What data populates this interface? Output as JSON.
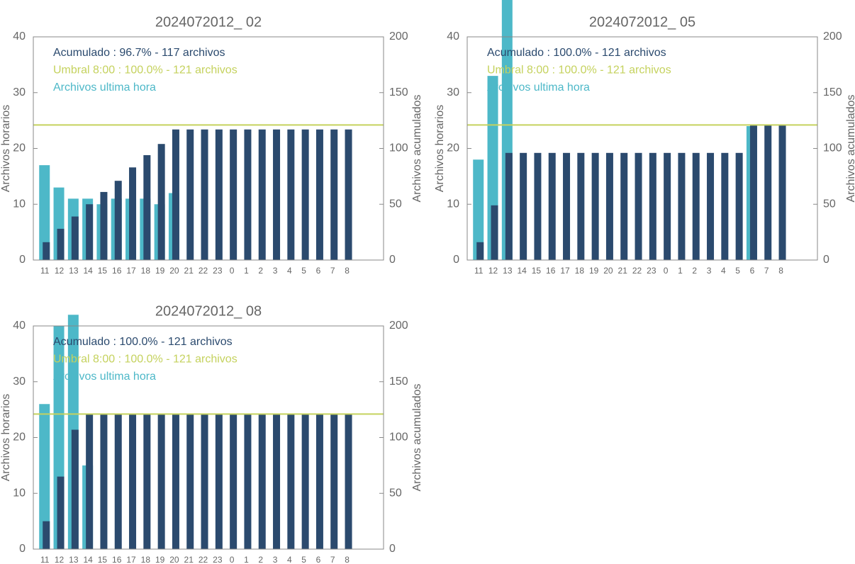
{
  "chart_data": [
    {
      "type": "bar",
      "title": "2024072012_ 02",
      "categories": [
        "11",
        "12",
        "13",
        "14",
        "15",
        "16",
        "17",
        "18",
        "19",
        "20",
        "21",
        "22",
        "23",
        "0",
        "1",
        "2",
        "3",
        "4",
        "5",
        "6",
        "7",
        "8"
      ],
      "ylabel": "Archivos horarios",
      "y2label": "Archivos acumulados",
      "ylim": [
        0,
        40
      ],
      "yticks": [
        0,
        10,
        20,
        30,
        40
      ],
      "y2lim": [
        0,
        200
      ],
      "y2ticks": [
        0,
        50,
        100,
        150,
        200
      ],
      "series": [
        {
          "name": "Archivos ultima hora",
          "color": "#4db8c8",
          "values": [
            17,
            13,
            11,
            11,
            10,
            11,
            11,
            11,
            10,
            12,
            null,
            null,
            null,
            null,
            null,
            null,
            null,
            null,
            null,
            null,
            null,
            null
          ]
        },
        {
          "name": "Acumulado : 96.7% - 117 archivos",
          "color": "#2b4a6e",
          "axis": "y2",
          "values": [
            16,
            28,
            39,
            50,
            61,
            71,
            83,
            94,
            104,
            117,
            117,
            117,
            117,
            117,
            117,
            117,
            117,
            117,
            117,
            117,
            117,
            117
          ]
        }
      ],
      "threshold": {
        "name": "Umbral 8:00 : 100.0% - 121 archivos",
        "color": "#c5d25e",
        "axis": "y2",
        "value": 121
      }
    },
    {
      "type": "bar",
      "title": "2024072012_ 05",
      "categories": [
        "11",
        "12",
        "13",
        "14",
        "15",
        "16",
        "17",
        "18",
        "19",
        "20",
        "21",
        "22",
        "23",
        "0",
        "1",
        "2",
        "3",
        "4",
        "5",
        "6",
        "7",
        "8"
      ],
      "ylabel": "Archivos horarios",
      "y2label": "Archivos acumulados",
      "ylim": [
        0,
        40
      ],
      "yticks": [
        0,
        10,
        20,
        30,
        40
      ],
      "y2lim": [
        0,
        200
      ],
      "y2ticks": [
        0,
        50,
        100,
        150,
        200
      ],
      "series": [
        {
          "name": "Archivos ultima hora",
          "color": "#4db8c8",
          "values": [
            18,
            33,
            47,
            null,
            null,
            null,
            null,
            null,
            null,
            null,
            null,
            null,
            null,
            null,
            null,
            null,
            null,
            null,
            null,
            24,
            null,
            null
          ]
        },
        {
          "name": "Acumulado : 100.0% - 121 archivos",
          "color": "#2b4a6e",
          "axis": "y2",
          "values": [
            16,
            49,
            96,
            96,
            96,
            96,
            96,
            96,
            96,
            96,
            96,
            96,
            96,
            96,
            96,
            96,
            96,
            96,
            96,
            121,
            121,
            121
          ]
        }
      ],
      "threshold": {
        "name": "Umbral 8:00 : 100.0% - 121 archivos",
        "color": "#c5d25e",
        "axis": "y2",
        "value": 121
      }
    },
    {
      "type": "bar",
      "title": "2024072012_ 08",
      "categories": [
        "11",
        "12",
        "13",
        "14",
        "15",
        "16",
        "17",
        "18",
        "19",
        "20",
        "21",
        "22",
        "23",
        "0",
        "1",
        "2",
        "3",
        "4",
        "5",
        "6",
        "7",
        "8"
      ],
      "ylabel": "Archivos horarios",
      "y2label": "Archivos acumulados",
      "ylim": [
        0,
        40
      ],
      "yticks": [
        0,
        10,
        20,
        30,
        40
      ],
      "y2lim": [
        0,
        200
      ],
      "y2ticks": [
        0,
        50,
        100,
        150,
        200
      ],
      "series": [
        {
          "name": "Archivos ultima hora",
          "color": "#4db8c8",
          "values": [
            26,
            40,
            42,
            15,
            null,
            null,
            null,
            null,
            null,
            null,
            null,
            null,
            null,
            null,
            null,
            null,
            null,
            null,
            null,
            null,
            null,
            null
          ]
        },
        {
          "name": "Acumulado : 100.0% - 121 archivos",
          "color": "#2b4a6e",
          "axis": "y2",
          "values": [
            25,
            65,
            107,
            121,
            121,
            121,
            121,
            121,
            121,
            121,
            121,
            121,
            121,
            121,
            121,
            121,
            121,
            121,
            121,
            121,
            121,
            121
          ]
        }
      ],
      "threshold": {
        "name": "Umbral 8:00 : 100.0% - 121 archivos",
        "color": "#c5d25e",
        "axis": "y2",
        "value": 121
      }
    }
  ]
}
